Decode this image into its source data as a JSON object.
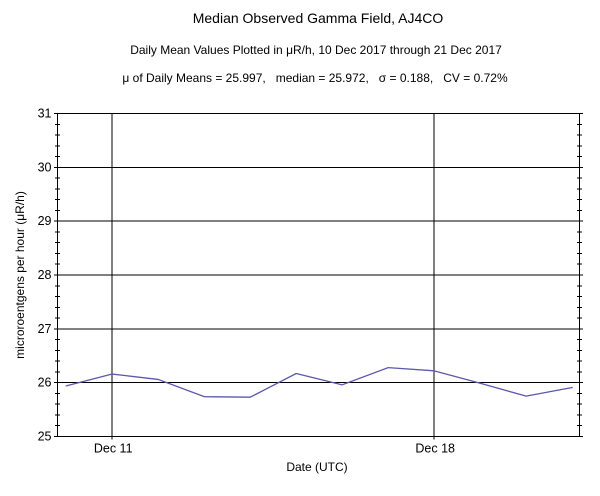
{
  "chart_data": {
    "type": "line",
    "title": "Median Observed Gamma Field, AJ4CO",
    "subtitle": "Daily Mean Values Plotted in μR/h, 10 Dec 2017 through 21 Dec 2017",
    "stats_line": "μ of Daily Means = 25.997,   median = 25.972,   σ = 0.188,   CV = 0.72%",
    "stats": {
      "mean_of_daily_means": 25.997,
      "median": 25.972,
      "sigma": 0.188,
      "cv_percent": 0.72
    },
    "xlabel": "Date (UTC)",
    "ylabel": "microroentgens per hour (μR/h)",
    "x_dates": [
      "10 Dec 2017",
      "11 Dec 2017",
      "12 Dec 2017",
      "13 Dec 2017",
      "14 Dec 2017",
      "15 Dec 2017",
      "16 Dec 2017",
      "17 Dec 2017",
      "18 Dec 2017",
      "19 Dec 2017",
      "20 Dec 2017",
      "21 Dec 2017"
    ],
    "series": [
      {
        "name": "daily-mean-gamma",
        "color": "#5b59ad",
        "values": [
          25.94,
          26.16,
          26.06,
          25.74,
          25.73,
          26.17,
          25.96,
          26.28,
          26.22,
          25.99,
          25.75,
          25.91
        ]
      }
    ],
    "ylim": [
      25,
      31
    ],
    "y_major_ticks": [
      25,
      26,
      27,
      28,
      29,
      30,
      31
    ],
    "y_minor_tick_step": 0.2,
    "x_tick_labels": [
      {
        "label": "Dec 11",
        "day_index": 1
      },
      {
        "label": "Dec 18",
        "day_index": 8
      }
    ],
    "grid": true,
    "legend": "none",
    "frame_color": "#000000",
    "background": "#ffffff",
    "text_color": "#000000"
  }
}
